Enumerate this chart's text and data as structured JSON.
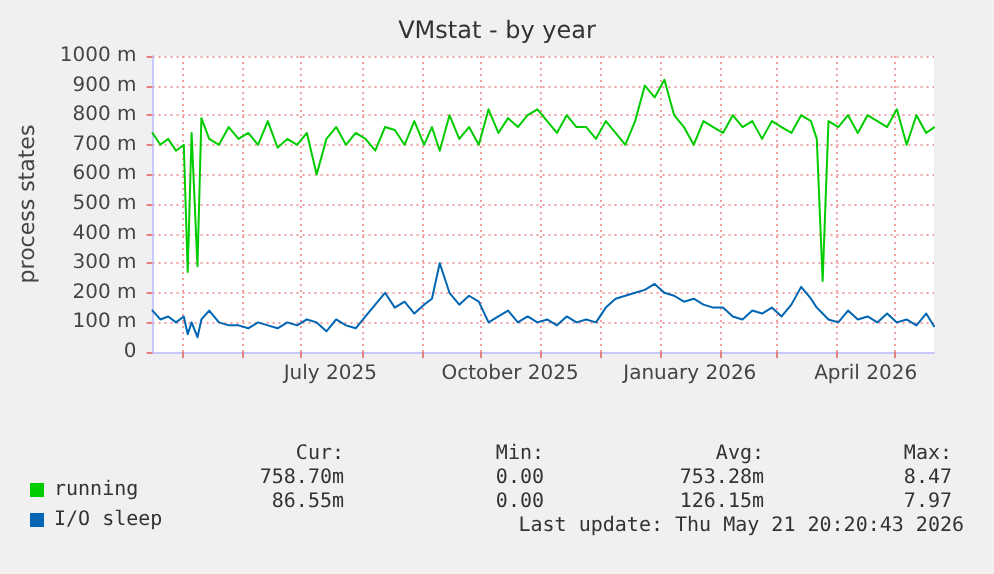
{
  "chart_data": {
    "type": "line",
    "title": "VMstat - by year",
    "ylabel": "process states",
    "x": [
      "2025-04-16",
      "2025-04-20",
      "2025-04-24",
      "2025-04-28",
      "2025-05-02",
      "2025-05-04",
      "2025-05-06",
      "2025-05-09",
      "2025-05-11",
      "2025-05-15",
      "2025-05-20",
      "2025-05-25",
      "2025-05-30",
      "2025-06-04",
      "2025-06-09",
      "2025-06-14",
      "2025-06-19",
      "2025-06-24",
      "2025-06-29",
      "2025-07-04",
      "2025-07-09",
      "2025-07-14",
      "2025-07-19",
      "2025-07-24",
      "2025-07-29",
      "2025-08-03",
      "2025-08-08",
      "2025-08-13",
      "2025-08-18",
      "2025-08-23",
      "2025-08-28",
      "2025-09-02",
      "2025-09-06",
      "2025-09-10",
      "2025-09-15",
      "2025-09-20",
      "2025-09-25",
      "2025-09-30",
      "2025-10-05",
      "2025-10-10",
      "2025-10-15",
      "2025-10-20",
      "2025-10-25",
      "2025-10-30",
      "2025-11-04",
      "2025-11-09",
      "2025-11-14",
      "2025-11-19",
      "2025-11-24",
      "2025-11-29",
      "2025-12-04",
      "2025-12-09",
      "2025-12-14",
      "2025-12-19",
      "2025-12-24",
      "2025-12-29",
      "2026-01-03",
      "2026-01-08",
      "2026-01-13",
      "2026-01-18",
      "2026-01-23",
      "2026-01-28",
      "2026-02-02",
      "2026-02-07",
      "2026-02-12",
      "2026-02-17",
      "2026-02-22",
      "2026-02-27",
      "2026-03-04",
      "2026-03-09",
      "2026-03-14",
      "2026-03-19",
      "2026-03-22",
      "2026-03-25",
      "2026-03-28",
      "2026-04-02",
      "2026-04-07",
      "2026-04-12",
      "2026-04-17",
      "2026-04-22",
      "2026-04-27",
      "2026-05-02",
      "2026-05-07",
      "2026-05-12",
      "2026-05-17",
      "2026-05-21"
    ],
    "series": [
      {
        "name": "running",
        "color": "#00cc00",
        "values": [
          740,
          700,
          720,
          680,
          700,
          270,
          740,
          290,
          790,
          720,
          700,
          760,
          720,
          740,
          700,
          780,
          690,
          720,
          700,
          740,
          600,
          720,
          760,
          700,
          740,
          720,
          680,
          760,
          750,
          700,
          780,
          700,
          760,
          680,
          800,
          720,
          760,
          700,
          820,
          740,
          790,
          760,
          800,
          820,
          780,
          740,
          800,
          760,
          760,
          720,
          780,
          740,
          700,
          780,
          900,
          860,
          920,
          800,
          760,
          700,
          780,
          760,
          740,
          800,
          760,
          780,
          720,
          780,
          760,
          740,
          800,
          780,
          720,
          240,
          780,
          760,
          800,
          740,
          800,
          780,
          760,
          820,
          700,
          800,
          740,
          759
        ]
      },
      {
        "name": "I/O sleep",
        "color": "#0066b3",
        "values": [
          140,
          110,
          120,
          100,
          120,
          60,
          100,
          50,
          110,
          140,
          100,
          90,
          90,
          80,
          100,
          90,
          80,
          100,
          90,
          110,
          100,
          70,
          110,
          90,
          80,
          120,
          160,
          200,
          150,
          170,
          130,
          160,
          180,
          300,
          200,
          160,
          190,
          170,
          100,
          120,
          140,
          100,
          120,
          100,
          110,
          90,
          120,
          100,
          110,
          100,
          150,
          180,
          190,
          200,
          210,
          230,
          200,
          190,
          170,
          180,
          160,
          150,
          150,
          120,
          110,
          140,
          130,
          150,
          120,
          160,
          220,
          180,
          150,
          130,
          110,
          100,
          140,
          110,
          120,
          100,
          130,
          100,
          110,
          90,
          130,
          87
        ]
      }
    ],
    "xlim": [
      "2025-04-16",
      "2026-05-21"
    ],
    "xticks": [
      {
        "value": "2025-05-01",
        "label": null
      },
      {
        "value": "2025-06-01",
        "label": null
      },
      {
        "value": "2025-07-01",
        "label": null
      },
      {
        "value": "2025-07-16",
        "label": "July 2025"
      },
      {
        "value": "2025-08-01",
        "label": null
      },
      {
        "value": "2025-09-01",
        "label": null
      },
      {
        "value": "2025-10-01",
        "label": null
      },
      {
        "value": "2025-10-16",
        "label": "October 2025"
      },
      {
        "value": "2025-11-01",
        "label": null
      },
      {
        "value": "2025-12-01",
        "label": null
      },
      {
        "value": "2026-01-01",
        "label": null
      },
      {
        "value": "2026-01-16",
        "label": "January 2026"
      },
      {
        "value": "2026-02-01",
        "label": null
      },
      {
        "value": "2026-03-01",
        "label": null
      },
      {
        "value": "2026-04-01",
        "label": null
      },
      {
        "value": "2026-04-16",
        "label": "April 2026"
      },
      {
        "value": "2026-05-01",
        "label": null
      }
    ],
    "ylim": [
      0,
      1000
    ],
    "yticks": [
      0,
      {
        "value": 100,
        "label": "100 m"
      },
      {
        "value": 200,
        "label": "200 m"
      },
      {
        "value": 300,
        "label": "300 m"
      },
      {
        "value": 400,
        "label": "400 m"
      },
      {
        "value": 500,
        "label": "500 m"
      },
      {
        "value": 600,
        "label": "600 m"
      },
      {
        "value": 700,
        "label": "700 m"
      },
      {
        "value": 800,
        "label": "800 m"
      },
      {
        "value": 900,
        "label": "900 m"
      },
      {
        "value": 1000,
        "label": "1000 m"
      }
    ],
    "grid": true,
    "legend": "bottom left",
    "marker": "none",
    "line_style": "solid",
    "annotations": [
      "Cur:",
      "Min:",
      "Avg:",
      "Max:",
      "758.70m",
      "0.00",
      "753.28m",
      "8.47",
      "86.55m",
      "0.00",
      "126.15m",
      "7.97",
      "Last update: Thu May 21 20:20:43 2026"
    ]
  }
}
